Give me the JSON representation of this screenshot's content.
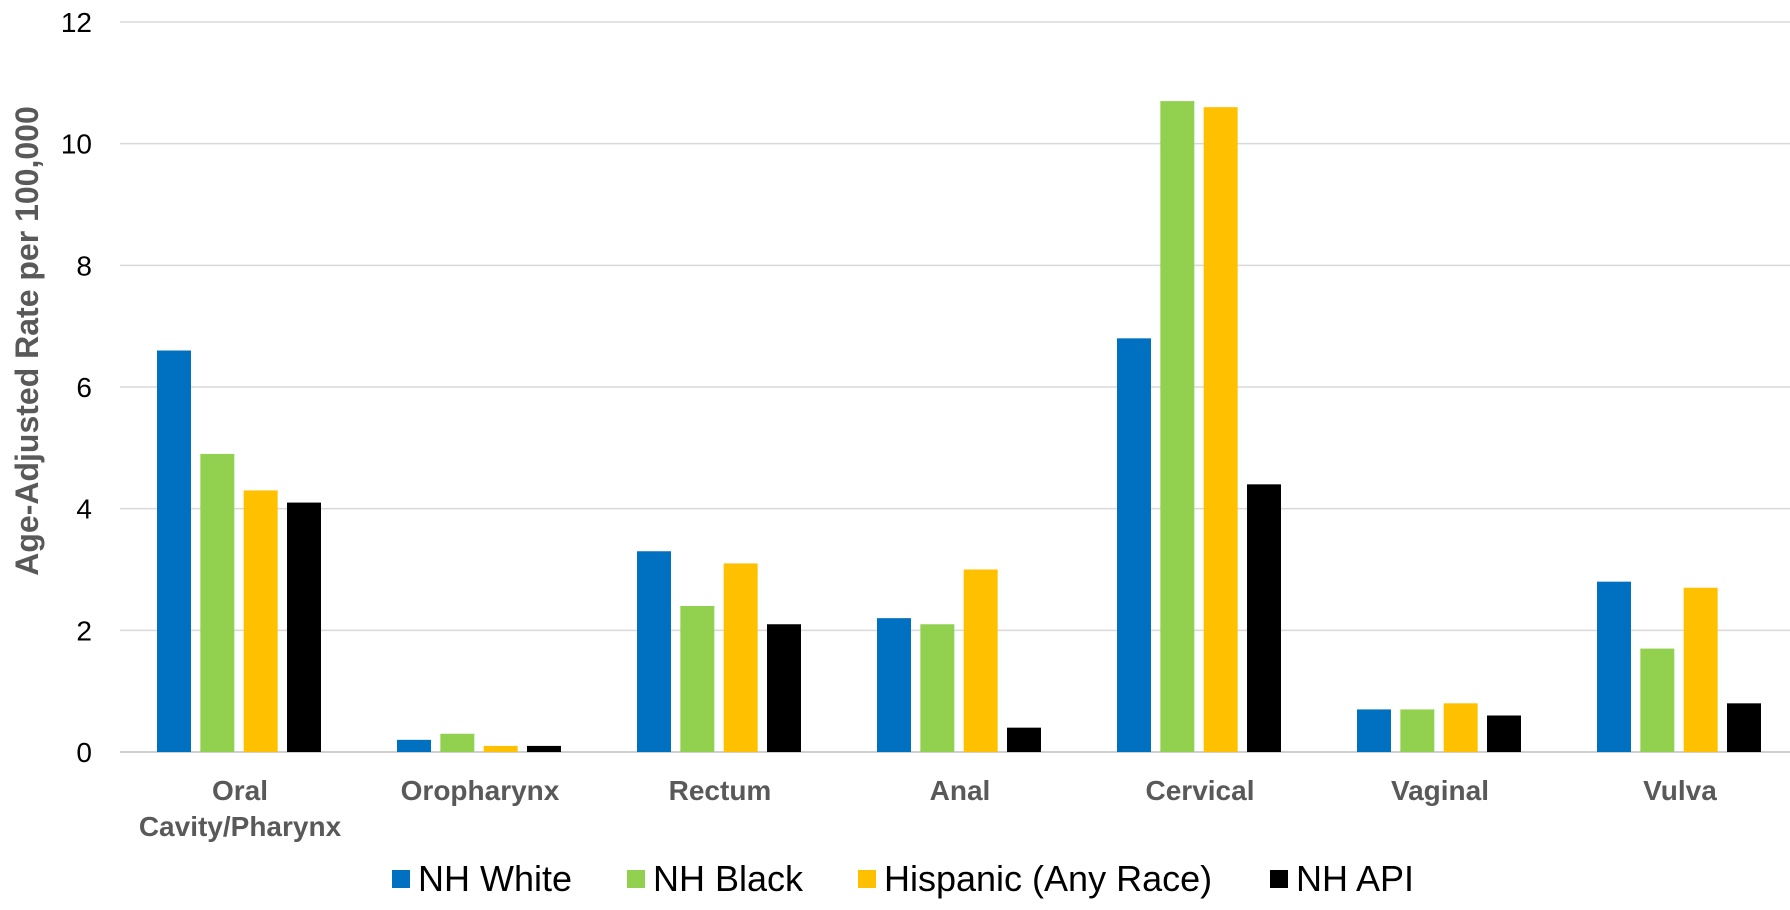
{
  "chart_data": {
    "type": "bar",
    "title": "",
    "xlabel": "",
    "ylabel": "Age-Adjusted Rate per 100,000",
    "ylim": [
      0,
      12
    ],
    "yticks": [
      0,
      2,
      4,
      6,
      8,
      10,
      12
    ],
    "grid": true,
    "legend_position": "bottom",
    "categories": [
      [
        "Oral",
        "Cavity/Pharynx"
      ],
      [
        "Oropharynx"
      ],
      [
        "Rectum"
      ],
      [
        "Anal"
      ],
      [
        "Cervical"
      ],
      [
        "Vaginal"
      ],
      [
        "Vulva"
      ]
    ],
    "series": [
      {
        "name": "NH White",
        "color": "#0070c0",
        "values": [
          6.6,
          0.2,
          3.3,
          2.2,
          6.8,
          0.7,
          2.8
        ]
      },
      {
        "name": "NH Black",
        "color": "#92d050",
        "values": [
          4.9,
          0.3,
          2.4,
          2.1,
          10.7,
          0.7,
          1.7
        ]
      },
      {
        "name": "Hispanic (Any Race)",
        "color": "#ffc000",
        "values": [
          4.3,
          0.1,
          3.1,
          3.0,
          10.6,
          0.8,
          2.7
        ]
      },
      {
        "name": "NH API",
        "color": "#000000",
        "values": [
          4.1,
          0.1,
          2.1,
          0.4,
          4.4,
          0.6,
          0.8
        ]
      }
    ]
  }
}
